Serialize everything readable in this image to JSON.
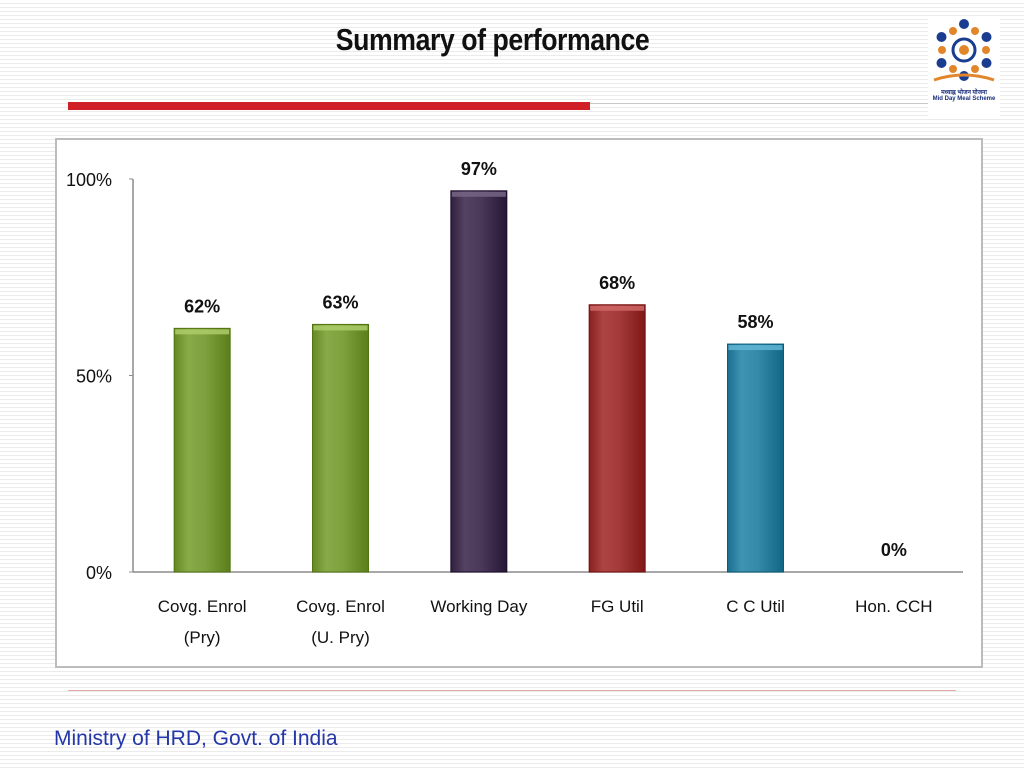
{
  "slide": {
    "title": "Summary of performance",
    "footer": "Ministry of HRD, Govt. of India"
  },
  "logo": {
    "line1": "मध्याह्न भोजन योजना",
    "line2": "Mid Day Meal Scheme"
  },
  "chart_data": {
    "type": "bar",
    "title": "",
    "xlabel": "",
    "ylabel": "",
    "categories": [
      "Covg. Enrol (Pry)",
      "Covg. Enrol (U. Pry)",
      "Working Day",
      "FG Util",
      "C C Util",
      "Hon. CCH"
    ],
    "category_lines": [
      [
        "Covg. Enrol",
        "(Pry)"
      ],
      [
        "Covg. Enrol",
        "(U. Pry)"
      ],
      [
        "Working Day"
      ],
      [
        "FG Util"
      ],
      [
        "C C Util"
      ],
      [
        "Hon. CCH"
      ]
    ],
    "values": [
      62,
      63,
      97,
      68,
      58,
      0
    ],
    "data_labels": [
      "62%",
      "63%",
      "97%",
      "68%",
      "58%",
      "0%"
    ],
    "bar_colors": [
      "#7ea03d",
      "#7ea03d",
      "#4a3858",
      "#a33a3a",
      "#3589a8",
      "#3589a8"
    ],
    "ylim": [
      0,
      100
    ],
    "yticks": [
      0,
      50,
      100
    ],
    "ytick_labels": [
      "0%",
      "50%",
      "100%"
    ],
    "grid": false,
    "legend": "none"
  }
}
